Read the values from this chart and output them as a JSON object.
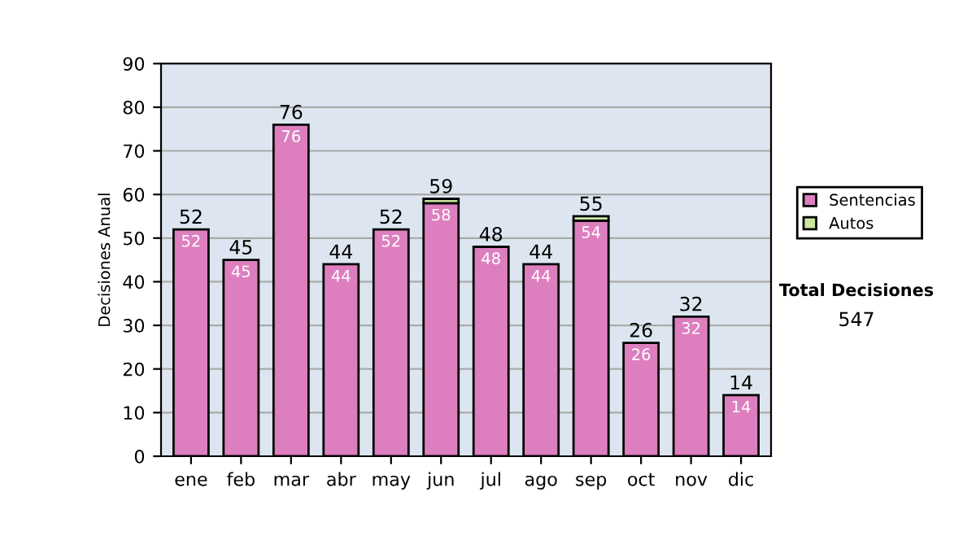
{
  "chart_data": {
    "type": "bar",
    "stacked": true,
    "ylabel": "Decisiones Anual",
    "categories": [
      "ene",
      "feb",
      "mar",
      "abr",
      "may",
      "jun",
      "jul",
      "ago",
      "sep",
      "oct",
      "nov",
      "dic"
    ],
    "series": [
      {
        "name": "Sentencias",
        "color": "#dd7fbf",
        "values": [
          52,
          45,
          76,
          44,
          52,
          58,
          48,
          44,
          54,
          26,
          32,
          14
        ],
        "value_labels": [
          "52",
          "45",
          "76",
          "44",
          "52",
          "58",
          "48",
          "44",
          "54",
          "26",
          "32",
          "14"
        ]
      },
      {
        "name": "Autos",
        "color": "#cce6a0",
        "values": [
          0,
          0,
          0,
          0,
          0,
          1,
          0,
          0,
          1,
          0,
          0,
          0
        ]
      }
    ],
    "totals": [
      "52",
      "45",
      "76",
      "44",
      "52",
      "59",
      "48",
      "44",
      "55",
      "26",
      "32",
      "14"
    ],
    "ylim": [
      0,
      90
    ],
    "yticks": [
      0,
      10,
      20,
      30,
      40,
      50,
      60,
      70,
      80,
      90
    ],
    "grid": "y",
    "legend": "right",
    "annotations": [
      "Total Decisiones",
      "547"
    ]
  }
}
